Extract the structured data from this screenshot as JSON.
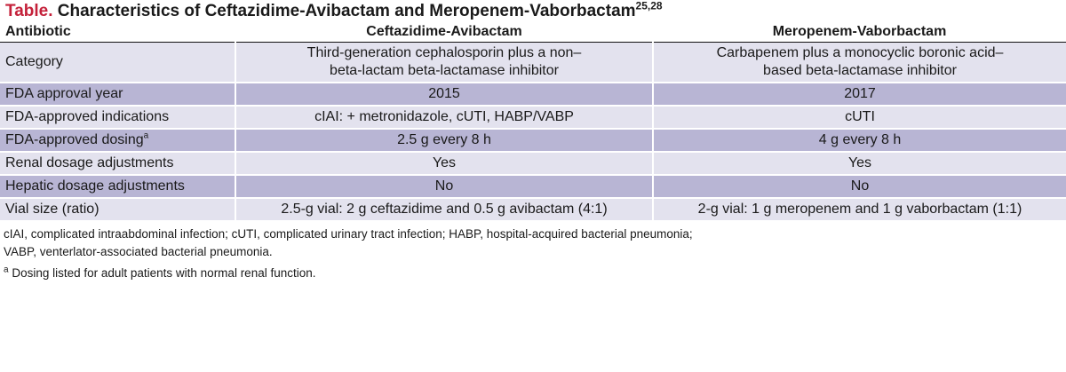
{
  "title": {
    "label": "Table.",
    "text": "Characteristics of Ceftazidime-Avibactam and Meropenem-Vaborbactam",
    "refs": "25,28"
  },
  "colors": {
    "title_label": "#c4213a",
    "row_light": "#e3e2ee",
    "row_dark": "#b8b5d4"
  },
  "headers": [
    "Antibiotic",
    "Ceftazidime-Avibactam",
    "Meropenem-Vaborbactam"
  ],
  "rows": [
    {
      "label": "Category",
      "sup": "",
      "c1": "Third-generation cephalosporin plus a non–beta-lactam beta-lactamase inhibitor",
      "c2": "Carbapenem plus a monocyclic boronic acid–based beta-lactamase inhibitor"
    },
    {
      "label": "FDA approval year",
      "sup": "",
      "c1": "2015",
      "c2": "2017"
    },
    {
      "label": "FDA-approved indications",
      "sup": "",
      "c1": "cIAI: + metronidazole, cUTI, HABP/VABP",
      "c2": "cUTI"
    },
    {
      "label": "FDA-approved dosing",
      "sup": "a",
      "c1": "2.5 g every 8 h",
      "c2": "4 g every 8 h"
    },
    {
      "label": "Renal dosage adjustments",
      "sup": "",
      "c1": "Yes",
      "c2": "Yes"
    },
    {
      "label": "Hepatic dosage adjustments",
      "sup": "",
      "c1": "No",
      "c2": "No"
    },
    {
      "label": "Vial size (ratio)",
      "sup": "",
      "c1": "2.5-g vial: 2 g ceftazidime and 0.5 g avibactam (4:1)",
      "c2": "2-g vial: 1 g meropenem and 1 g vaborbactam (1:1)"
    }
  ],
  "notes": {
    "abbrev": "cIAI, complicated intraabdominal infection; cUTI, complicated urinary tract infection; HABP, hospital-acquired bacterial pneumonia;",
    "abbrev2": "VABP, venterlator-associated bacterial pneumonia.",
    "foot_mark": "a",
    "foot": " Dosing listed for adult patients with normal renal function."
  }
}
